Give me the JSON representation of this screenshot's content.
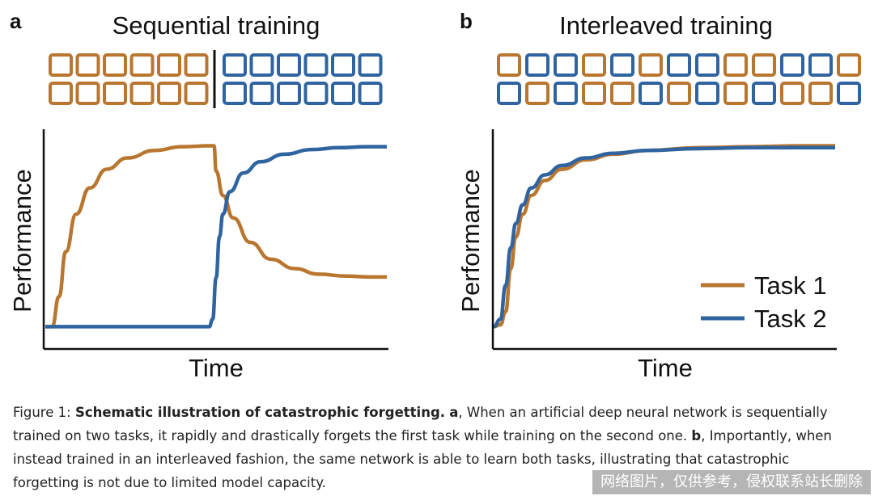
{
  "colors": {
    "task1": "#B9762F",
    "task2": "#2F64A0",
    "axis": "#111111"
  },
  "panels": {
    "a": {
      "letter": "a",
      "title": "Sequential training",
      "xlabel": "Time",
      "ylabel": "Performance"
    },
    "b": {
      "letter": "b",
      "title": "Interleaved training",
      "xlabel": "Time",
      "ylabel": "Performance"
    }
  },
  "blocks": {
    "a": {
      "rows": [
        [
          "task1",
          "task1",
          "task1",
          "task1",
          "task1",
          "task1",
          "sep",
          "task2",
          "task2",
          "task2",
          "task2",
          "task2",
          "task2"
        ],
        [
          "task1",
          "task1",
          "task1",
          "task1",
          "task1",
          "task1",
          "sep",
          "task2",
          "task2",
          "task2",
          "task2",
          "task2",
          "task2"
        ]
      ]
    },
    "b": {
      "rows": [
        [
          "task1",
          "task2",
          "task2",
          "task1",
          "task2",
          "task1",
          "task2",
          "task2",
          "task1",
          "task1",
          "task2",
          "task2",
          "task1"
        ],
        [
          "task2",
          "task1",
          "task2",
          "task1",
          "task1",
          "task2",
          "task1",
          "task2",
          "task1",
          "task2",
          "task1",
          "task1",
          "task2"
        ]
      ]
    }
  },
  "chart_data": [
    {
      "type": "line",
      "title": "Sequential training",
      "xlabel": "Time",
      "ylabel": "Performance",
      "xlim": [
        0,
        1
      ],
      "ylim": [
        0,
        1
      ],
      "series": [
        {
          "name": "Task 1",
          "color": "#B9762F",
          "x": [
            0,
            0.02,
            0.04,
            0.06,
            0.09,
            0.13,
            0.18,
            0.24,
            0.32,
            0.4,
            0.48,
            0.494,
            0.5,
            0.52,
            0.55,
            0.6,
            0.66,
            0.73,
            0.8,
            0.88,
            0.95,
            1.0
          ],
          "y": [
            0.02,
            0.02,
            0.18,
            0.42,
            0.62,
            0.76,
            0.86,
            0.92,
            0.96,
            0.98,
            0.985,
            0.985,
            0.85,
            0.72,
            0.6,
            0.47,
            0.38,
            0.33,
            0.3,
            0.29,
            0.285,
            0.285
          ]
        },
        {
          "name": "Task 2",
          "color": "#2F64A0",
          "x": [
            0,
            0.1,
            0.2,
            0.3,
            0.4,
            0.48,
            0.49,
            0.5,
            0.51,
            0.52,
            0.54,
            0.58,
            0.63,
            0.7,
            0.78,
            0.86,
            0.94,
            1.0
          ],
          "y": [
            0.02,
            0.02,
            0.02,
            0.02,
            0.02,
            0.02,
            0.06,
            0.28,
            0.5,
            0.62,
            0.74,
            0.84,
            0.9,
            0.94,
            0.965,
            0.975,
            0.98,
            0.98
          ]
        }
      ]
    },
    {
      "type": "line",
      "title": "Interleaved training",
      "xlabel": "Time",
      "ylabel": "Performance",
      "xlim": [
        0,
        1
      ],
      "ylim": [
        0,
        1
      ],
      "legend": "center-right",
      "series": [
        {
          "name": "Task 1",
          "color": "#B9762F",
          "x": [
            0,
            0.02,
            0.035,
            0.05,
            0.065,
            0.085,
            0.11,
            0.15,
            0.2,
            0.27,
            0.35,
            0.45,
            0.6,
            0.75,
            0.9,
            1.0
          ],
          "y": [
            0.02,
            0.03,
            0.1,
            0.33,
            0.5,
            0.62,
            0.72,
            0.8,
            0.86,
            0.91,
            0.94,
            0.96,
            0.975,
            0.98,
            0.985,
            0.985
          ]
        },
        {
          "name": "Task 2",
          "color": "#2F64A0",
          "x": [
            0,
            0.02,
            0.035,
            0.05,
            0.065,
            0.085,
            0.11,
            0.15,
            0.2,
            0.27,
            0.35,
            0.45,
            0.6,
            0.75,
            0.9,
            1.0
          ],
          "y": [
            0.02,
            0.06,
            0.24,
            0.44,
            0.57,
            0.67,
            0.76,
            0.83,
            0.88,
            0.92,
            0.945,
            0.96,
            0.97,
            0.975,
            0.975,
            0.975
          ]
        }
      ]
    }
  ],
  "caption": {
    "prefix": "Figure 1: ",
    "bold": "Schematic illustration of catastrophic forgetting.",
    "a_letter": "a",
    "part1": ", When an artificial deep neural network is sequentially trained on two tasks, it rapidly and drastically forgets the first task while training on the second one. ",
    "b_letter": "b",
    "part2": ", Importantly, when instead trained in an interleaved fashion, the same network is able to learn both tasks, illustrating that catastrophic forgetting is not due to limited model capacity."
  },
  "watermark": "网络图片，仅供参考，侵权联系站长删除"
}
